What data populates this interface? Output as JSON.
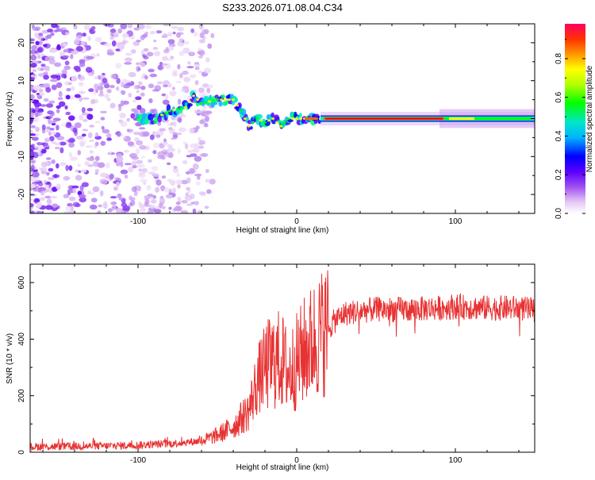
{
  "title": "S233.2026.071.08.04.C34",
  "chart_data": [
    {
      "type": "heatmap",
      "title": "S233.2026.071.08.04.C34",
      "xlabel": "Height of straight line (km)",
      "ylabel": "Frequency (Hz)",
      "xlim": [
        -168,
        150
      ],
      "ylim": [
        -25,
        25
      ],
      "xticks": [
        -100,
        0,
        100
      ],
      "yticks": [
        -20,
        -10,
        0,
        10,
        20
      ],
      "colorbar": {
        "label": "Normalized spectral amplitude",
        "range": [
          0,
          1
        ],
        "ticks": [
          "0.0",
          "0.2",
          "0.4",
          "0.6",
          "0.8"
        ]
      },
      "ridge": {
        "description_x_km": [
          -100,
          -90,
          -80,
          -70,
          -65,
          -60,
          -50,
          -40,
          -35,
          -30,
          -25,
          -20,
          -15,
          -10,
          -5,
          0,
          10,
          20,
          50,
          90,
          100,
          150
        ],
        "frequency_hz": [
          0,
          0,
          2,
          3,
          6,
          4,
          5,
          5,
          2,
          -2,
          0,
          -1,
          0,
          -2,
          0,
          0,
          0,
          0,
          0,
          0,
          0,
          0
        ]
      }
    },
    {
      "type": "line",
      "xlabel": "Height of straight line (km)",
      "ylabel": "SNR (10 * v/v)",
      "xlim": [
        -168,
        150
      ],
      "ylim": [
        0,
        665
      ],
      "xticks": [
        -100,
        0,
        100
      ],
      "yticks": [
        0,
        200,
        400,
        600
      ],
      "series": [
        {
          "name": "SNR",
          "color": "#e83232",
          "x": [
            -168,
            -150,
            -120,
            -100,
            -80,
            -60,
            -50,
            -40,
            -30,
            -25,
            -20,
            -15,
            -10,
            -5,
            0,
            5,
            10,
            15,
            20,
            25,
            30,
            40,
            50,
            70,
            90,
            100,
            120,
            140,
            150
          ],
          "y": [
            20,
            20,
            22,
            25,
            30,
            40,
            60,
            90,
            150,
            250,
            300,
            320,
            330,
            280,
            320,
            360,
            390,
            420,
            440,
            470,
            490,
            500,
            505,
            505,
            510,
            515,
            510,
            510,
            500
          ]
        }
      ]
    }
  ]
}
